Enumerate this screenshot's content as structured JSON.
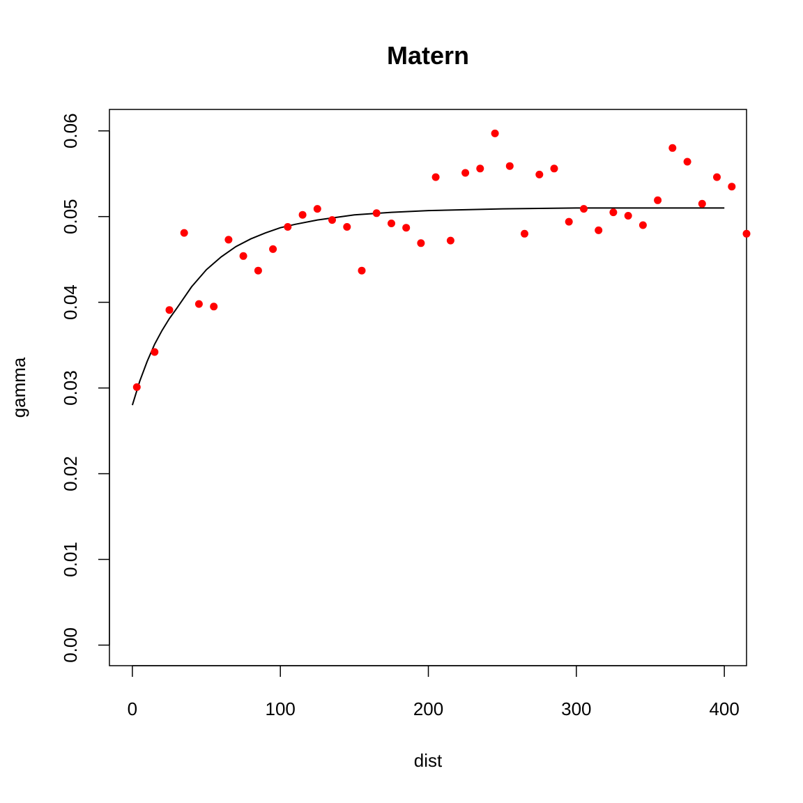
{
  "chart_data": {
    "type": "scatter",
    "title": "Matern",
    "xlabel": "dist",
    "ylabel": "gamma",
    "xlim": [
      -15.5,
      415
    ],
    "ylim": [
      -0.0024,
      0.0625
    ],
    "xticks": [
      0,
      100,
      200,
      300,
      400
    ],
    "yticks": [
      0.0,
      0.01,
      0.02,
      0.03,
      0.04,
      0.05,
      0.06
    ],
    "xtick_labels": [
      "0",
      "100",
      "200",
      "300",
      "400"
    ],
    "ytick_labels": [
      "0.00",
      "0.01",
      "0.02",
      "0.03",
      "0.04",
      "0.05",
      "0.06"
    ],
    "grid": false,
    "legend": "none",
    "point_color": "#ff0000",
    "line_color": "#000000",
    "series": [
      {
        "kind": "points",
        "x": [
          3,
          15,
          25,
          35,
          45,
          55,
          65,
          75,
          85,
          95,
          105,
          115,
          125,
          135,
          145,
          155,
          165,
          175,
          185,
          195,
          205,
          215,
          225,
          235,
          245,
          255,
          265,
          275,
          285,
          295,
          305,
          315,
          325,
          335,
          345,
          355,
          365,
          375,
          385,
          395,
          405,
          415
        ],
        "y": [
          0.0301,
          0.0342,
          0.0391,
          0.0481,
          0.0398,
          0.0395,
          0.0473,
          0.0454,
          0.0437,
          0.0462,
          0.0488,
          0.0502,
          0.0509,
          0.0496,
          0.0488,
          0.0437,
          0.0504,
          0.0492,
          0.0487,
          0.0469,
          0.0546,
          0.0472,
          0.0551,
          0.0556,
          0.0597,
          0.0559,
          0.048,
          0.0549,
          0.0556,
          0.0494,
          0.0509,
          0.0484,
          0.0505,
          0.0501,
          0.049,
          0.0519,
          0.058,
          0.0564,
          0.0515,
          0.0546,
          0.0535,
          0.048
        ]
      },
      {
        "kind": "line",
        "x": [
          0,
          5,
          10,
          15,
          20,
          25,
          30,
          40,
          50,
          60,
          70,
          80,
          90,
          100,
          110,
          125,
          150,
          175,
          200,
          225,
          250,
          300,
          350,
          400
        ],
        "y": [
          0.028,
          0.0308,
          0.0331,
          0.0351,
          0.0367,
          0.0381,
          0.0393,
          0.0418,
          0.0438,
          0.0453,
          0.0465,
          0.0474,
          0.0481,
          0.0487,
          0.0491,
          0.0496,
          0.0502,
          0.0505,
          0.0507,
          0.0508,
          0.0509,
          0.051,
          0.051,
          0.051
        ]
      }
    ]
  }
}
